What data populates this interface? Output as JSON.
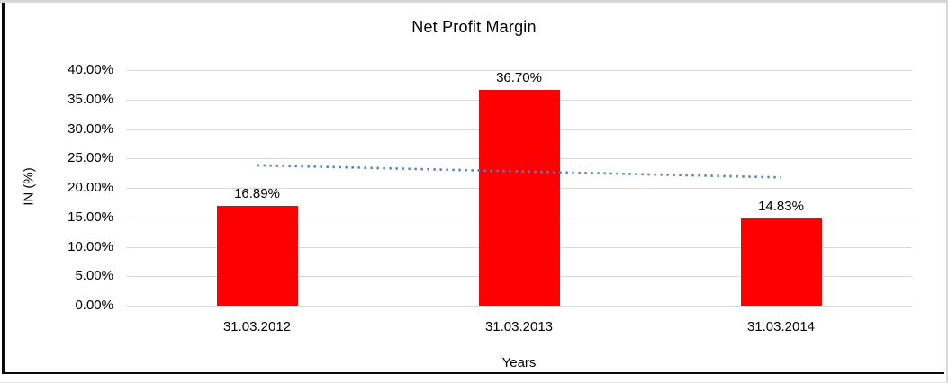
{
  "chart_data": {
    "type": "bar",
    "title": "Net Profit Margin",
    "xlabel": "Years",
    "ylabel": "IN (%)",
    "categories": [
      "31.03.2012",
      "31.03.2013",
      "31.03.2014"
    ],
    "values": [
      16.89,
      36.7,
      14.83
    ],
    "value_labels": [
      "16.89%",
      "36.70%",
      "14.83%"
    ],
    "ylim": [
      0,
      40
    ],
    "ytick_values": [
      0,
      5,
      10,
      15,
      20,
      25,
      30,
      35,
      40
    ],
    "ytick_labels": [
      "0.00%",
      "5.00%",
      "10.00%",
      "15.00%",
      "20.00%",
      "25.00%",
      "30.00%",
      "35.00%",
      "40.00%"
    ],
    "grid": "horizontal",
    "legend_position": "none",
    "bar_color": "#ff0000",
    "gridline_color": "#d9d9d9",
    "text_color": "#000000",
    "trendline": {
      "type": "linear",
      "style": "dotted",
      "color": "#4e81bd",
      "start_value": 23.84,
      "end_value": 21.78,
      "from_category": "31.03.2012",
      "to_category": "31.03.2014"
    }
  }
}
